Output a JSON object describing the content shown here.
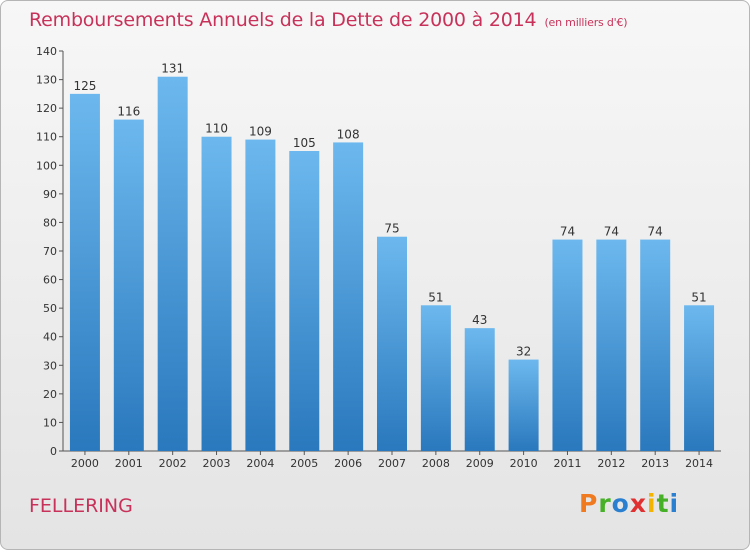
{
  "header": {
    "title": "Remboursements Annuels de la Dette de 2000 à 2014",
    "unit": "(en milliers d'€)"
  },
  "footer": {
    "commune": "FELLERING",
    "brand": "Proxiti"
  },
  "colors": {
    "title": "#c8325a",
    "bar_top": "#6cb8ee",
    "bar_bottom": "#2a78bd",
    "logo": [
      "#f07a20",
      "#46b028",
      "#2a7fd0",
      "#e03030",
      "#f2b400",
      "#46b028",
      "#2a7fd0"
    ]
  },
  "chart_data": {
    "type": "bar",
    "title": "Remboursements Annuels de la Dette de 2000 à 2014",
    "unit": "(en milliers d'€)",
    "categories": [
      "2000",
      "2001",
      "2002",
      "2003",
      "2004",
      "2005",
      "2006",
      "2007",
      "2008",
      "2009",
      "2010",
      "2011",
      "2012",
      "2013",
      "2014"
    ],
    "values": [
      125,
      116,
      131,
      110,
      109,
      105,
      108,
      75,
      51,
      43,
      32,
      74,
      74,
      74,
      51
    ],
    "ylim": [
      0,
      140
    ],
    "yticks": [
      0,
      10,
      20,
      30,
      40,
      50,
      60,
      70,
      80,
      90,
      100,
      110,
      120,
      130,
      140
    ],
    "grid": false,
    "xlabel": "",
    "ylabel": ""
  }
}
